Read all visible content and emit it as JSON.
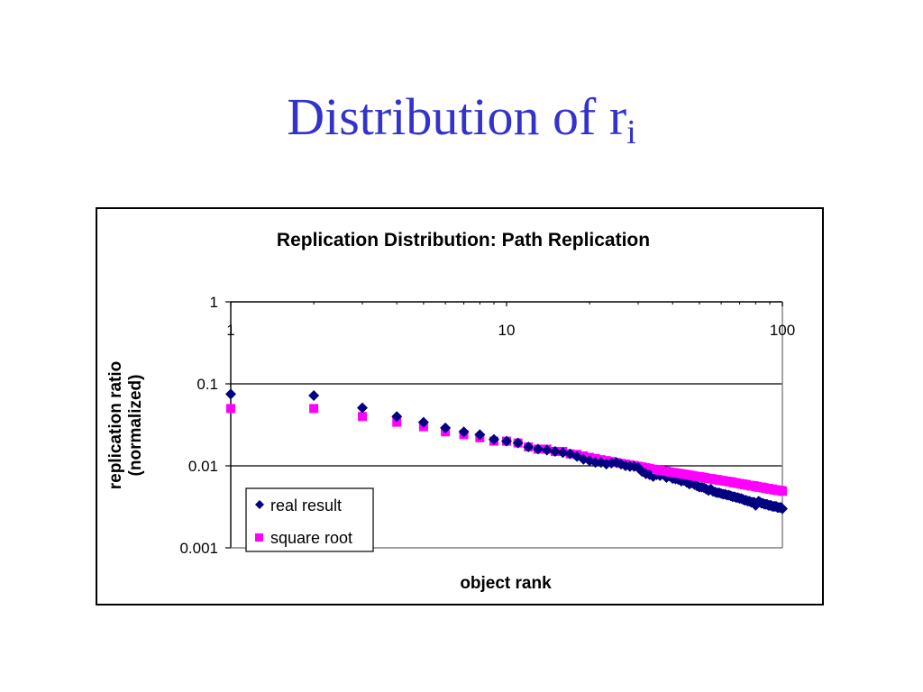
{
  "slide": {
    "title_main": "Distribution of r",
    "title_sub": "i"
  },
  "colors": {
    "title": "#3333cc",
    "real_result": "#000080",
    "square_root": "#ff00ff"
  },
  "chart_data": {
    "type": "scatter",
    "title": "Replication Distribution: Path Replication",
    "xlabel": "object rank",
    "ylabel_lines": [
      "replication ratio",
      "(normalized)"
    ],
    "xscale": "log",
    "yscale": "log",
    "xlim": [
      1,
      100
    ],
    "ylim": [
      0.001,
      1
    ],
    "x_ticks": [
      "1",
      "10",
      "100"
    ],
    "y_ticks": [
      "1",
      "0.1",
      "0.01",
      "0.001"
    ],
    "x_tick_values": [
      1,
      10,
      100
    ],
    "y_tick_values": [
      1,
      0.1,
      0.01,
      0.001
    ],
    "x_axis_position": "top",
    "grid": "horizontal",
    "legend_position": "bottom-left",
    "series": [
      {
        "name": "real result",
        "marker": "diamond",
        "color": "#000080",
        "x": [
          1,
          2,
          3,
          4,
          5,
          6,
          7,
          8,
          9,
          10,
          11,
          12,
          13,
          14,
          15,
          16,
          17,
          18,
          19,
          20,
          21,
          22,
          23,
          24,
          25,
          26,
          27,
          28,
          29,
          30,
          31,
          32,
          33,
          34,
          35,
          36,
          37,
          38,
          39,
          40,
          41,
          42,
          43,
          44,
          45,
          46,
          47,
          48,
          49,
          50,
          51,
          52,
          53,
          54,
          55,
          56,
          57,
          58,
          59,
          60,
          61,
          62,
          63,
          64,
          65,
          66,
          67,
          68,
          69,
          70,
          71,
          72,
          73,
          74,
          75,
          76,
          77,
          78,
          79,
          80,
          81,
          82,
          83,
          84,
          85,
          86,
          87,
          88,
          89,
          90,
          91,
          92,
          93,
          94,
          95,
          96,
          97,
          98,
          99,
          100
        ],
        "y": [
          0.075,
          0.072,
          0.051,
          0.04,
          0.034,
          0.029,
          0.026,
          0.024,
          0.021,
          0.02,
          0.019,
          0.017,
          0.016,
          0.0155,
          0.015,
          0.0145,
          0.014,
          0.013,
          0.012,
          0.0115,
          0.011,
          0.011,
          0.0105,
          0.0108,
          0.011,
          0.0105,
          0.01,
          0.0098,
          0.0098,
          0.0095,
          0.0085,
          0.008,
          0.0078,
          0.0074,
          0.0078,
          0.0076,
          0.0079,
          0.0072,
          0.0075,
          0.007,
          0.0069,
          0.0068,
          0.0065,
          0.0066,
          0.0063,
          0.006,
          0.0062,
          0.0059,
          0.0057,
          0.0055,
          0.0055,
          0.0054,
          0.0052,
          0.005,
          0.0052,
          0.0049,
          0.0048,
          0.0047,
          0.0047,
          0.0046,
          0.0045,
          0.0045,
          0.0044,
          0.0044,
          0.0043,
          0.0042,
          0.0042,
          0.0041,
          0.0041,
          0.004,
          0.004,
          0.0039,
          0.0038,
          0.0038,
          0.0037,
          0.0037,
          0.0036,
          0.0036,
          0.0036,
          0.0033,
          0.0035,
          0.0037,
          0.0036,
          0.0035,
          0.0035,
          0.0034,
          0.0034,
          0.0034,
          0.0033,
          0.0033,
          0.0033,
          0.0032,
          0.0032,
          0.0032,
          0.0032,
          0.0031,
          0.0031,
          0.0031,
          0.0031,
          0.003
        ]
      },
      {
        "name": "square root",
        "marker": "square",
        "color": "#ff00ff",
        "x": [
          1,
          2,
          3,
          4,
          5,
          6,
          7,
          8,
          9,
          10,
          11,
          12,
          13,
          14,
          15,
          16,
          17,
          18,
          19,
          20,
          21,
          22,
          23,
          24,
          25,
          26,
          27,
          28,
          29,
          30,
          31,
          32,
          33,
          34,
          35,
          36,
          37,
          38,
          39,
          40,
          41,
          42,
          43,
          44,
          45,
          46,
          47,
          48,
          49,
          50,
          51,
          52,
          53,
          54,
          55,
          56,
          57,
          58,
          59,
          60,
          61,
          62,
          63,
          64,
          65,
          66,
          67,
          68,
          69,
          70,
          71,
          72,
          73,
          74,
          75,
          76,
          77,
          78,
          79,
          80,
          81,
          82,
          83,
          84,
          85,
          86,
          87,
          88,
          89,
          90,
          91,
          92,
          93,
          94,
          95,
          96,
          97,
          98,
          99,
          100
        ],
        "y": [
          0.05,
          0.05,
          0.04,
          0.034,
          0.03,
          0.026,
          0.024,
          0.022,
          0.02,
          0.02,
          0.019,
          0.017,
          0.016,
          0.016,
          0.015,
          0.015,
          0.014,
          0.0138,
          0.0132,
          0.0127,
          0.0123,
          0.0119,
          0.0116,
          0.0113,
          0.011,
          0.0107,
          0.0105,
          0.0103,
          0.0101,
          0.0099,
          0.0097,
          0.0095,
          0.0093,
          0.0091,
          0.009,
          0.0088,
          0.0087,
          0.0086,
          0.0084,
          0.0083,
          0.0082,
          0.0081,
          0.008,
          0.0079,
          0.0078,
          0.0077,
          0.0076,
          0.0075,
          0.0074,
          0.0074,
          0.0073,
          0.0072,
          0.0071,
          0.007,
          0.007,
          0.0069,
          0.0068,
          0.0068,
          0.0067,
          0.0066,
          0.0066,
          0.0065,
          0.0065,
          0.0064,
          0.0064,
          0.0063,
          0.0062,
          0.0062,
          0.0061,
          0.0061,
          0.006,
          0.006,
          0.0059,
          0.0059,
          0.0058,
          0.0058,
          0.0057,
          0.0057,
          0.0057,
          0.0056,
          0.0056,
          0.0055,
          0.0055,
          0.0055,
          0.0054,
          0.0054,
          0.0053,
          0.0053,
          0.0053,
          0.0052,
          0.0052,
          0.0052,
          0.0051,
          0.0051,
          0.0051,
          0.005,
          0.005,
          0.005,
          0.005,
          0.0049
        ]
      }
    ]
  }
}
